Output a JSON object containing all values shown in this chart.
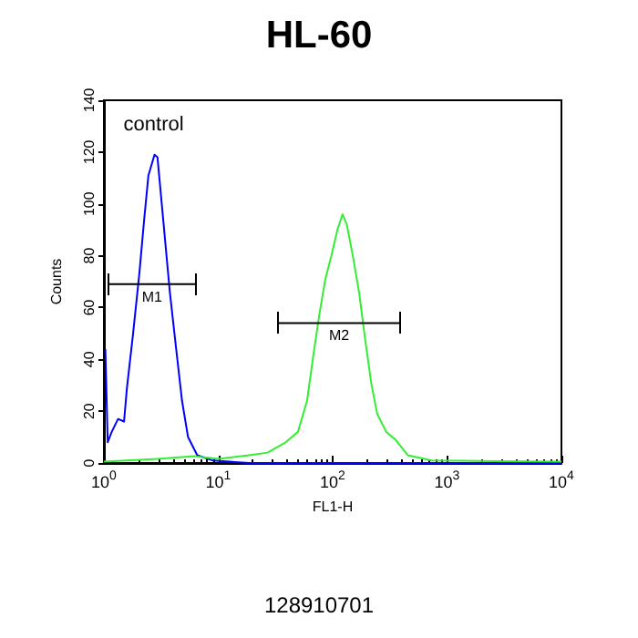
{
  "chart_data": {
    "type": "line",
    "title": "HL-60",
    "xlabel": "FL1-H",
    "ylabel": "Counts",
    "annotations": [
      "128910701"
    ],
    "log": "x",
    "grid": false,
    "legend": false,
    "marker": "none",
    "xlim": [
      1,
      10000
    ],
    "ylim": [
      0,
      140
    ],
    "xticks": [
      {
        "value": 1,
        "label": "10$^{0}$"
      },
      {
        "value": 10,
        "label": "10$^{1}$"
      },
      {
        "value": 100,
        "label": "10$^{2}$"
      },
      {
        "value": 1000,
        "label": "10$^{3}$"
      },
      {
        "value": 10000,
        "label": "10$^{4}$"
      }
    ],
    "yticks": [
      0,
      20,
      40,
      60,
      80,
      100,
      120,
      140
    ],
    "series": [
      {
        "name": "control",
        "color": "#0000ff",
        "x": [
          1.03,
          1.08,
          1.17,
          1.33,
          1.5,
          1.59,
          1.8,
          2.04,
          2.25,
          2.45,
          2.77,
          2.94,
          3.33,
          3.77,
          4.26,
          4.82,
          5.44,
          6.55,
          8.9,
          18.6,
          401,
          10000
        ],
        "values": [
          44,
          8,
          12,
          17,
          16,
          29,
          50,
          73,
          94,
          111,
          119,
          118,
          92,
          66,
          45,
          24,
          10,
          3,
          1,
          0,
          0,
          0
        ]
      },
      {
        "color": "#33ee33",
        "x": [
          1,
          2.94,
          6.15,
          10.1,
          18.6,
          26.9,
          38.8,
          49.7,
          59.7,
          67.5,
          76.3,
          86.3,
          97.5,
          110,
          122,
          133,
          150,
          170,
          192,
          217,
          245,
          294,
          354,
          453,
          740,
          2530,
          10000
        ],
        "values": [
          0.5,
          1.6,
          2.6,
          1.6,
          3,
          4,
          8,
          12,
          24,
          41,
          57,
          71,
          80,
          90,
          96,
          92,
          80,
          66,
          48,
          31,
          19,
          12,
          9,
          3,
          1,
          0.7,
          0.5
        ]
      },
      {
        "name": "M1",
        "color": "#000000",
        "x": [
          1.1,
          6.31
        ],
        "values": [
          69,
          69
        ]
      },
      {
        "name": "M2",
        "color": "#000000",
        "x": [
          33.5,
          386
        ],
        "values": [
          54,
          54
        ]
      }
    ]
  }
}
